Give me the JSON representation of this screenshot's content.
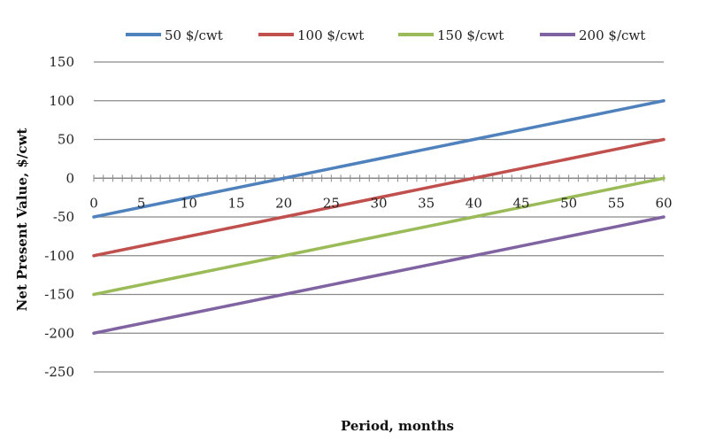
{
  "chart_data": {
    "type": "line",
    "title": "",
    "xlabel": "Period, months",
    "ylabel": "Net Present Value, $/cwt",
    "x": [
      0,
      5,
      10,
      15,
      20,
      25,
      30,
      35,
      40,
      45,
      50,
      55,
      60
    ],
    "x_ticks": [
      "0",
      "5",
      "10",
      "15",
      "20",
      "25",
      "30",
      "35",
      "40",
      "45",
      "50",
      "55",
      "60"
    ],
    "xlim": [
      0,
      60
    ],
    "y_ticks": [
      "150",
      "100",
      "50",
      "0",
      "-50",
      "-100",
      "-150",
      "-200",
      "-250"
    ],
    "ylim": [
      -250,
      150
    ],
    "grid": "horizontal",
    "legend_position": "top",
    "series": [
      {
        "name": "50 $/cwt",
        "color": "#4F81BD",
        "values": [
          -50,
          -37.5,
          -25,
          -12.5,
          0,
          12.5,
          25,
          37.5,
          50,
          62.5,
          75,
          87.5,
          100
        ]
      },
      {
        "name": "100 $/cwt",
        "color": "#C0504D",
        "values": [
          -100,
          -87.5,
          -75,
          -62.5,
          -50,
          -37.5,
          -25,
          -12.5,
          0,
          12.5,
          25,
          37.5,
          50
        ]
      },
      {
        "name": "150 $/cwt",
        "color": "#9BBB59",
        "values": [
          -150,
          -137.5,
          -125,
          -112.5,
          -100,
          -87.5,
          -75,
          -62.5,
          -50,
          -37.5,
          -25,
          -12.5,
          0
        ]
      },
      {
        "name": "200 $/cwt",
        "color": "#8064A2",
        "values": [
          -200,
          -187.5,
          -175,
          -162.5,
          -150,
          -137.5,
          -125,
          -112.5,
          -100,
          -87.5,
          -75,
          -62.5,
          -50
        ]
      }
    ]
  }
}
